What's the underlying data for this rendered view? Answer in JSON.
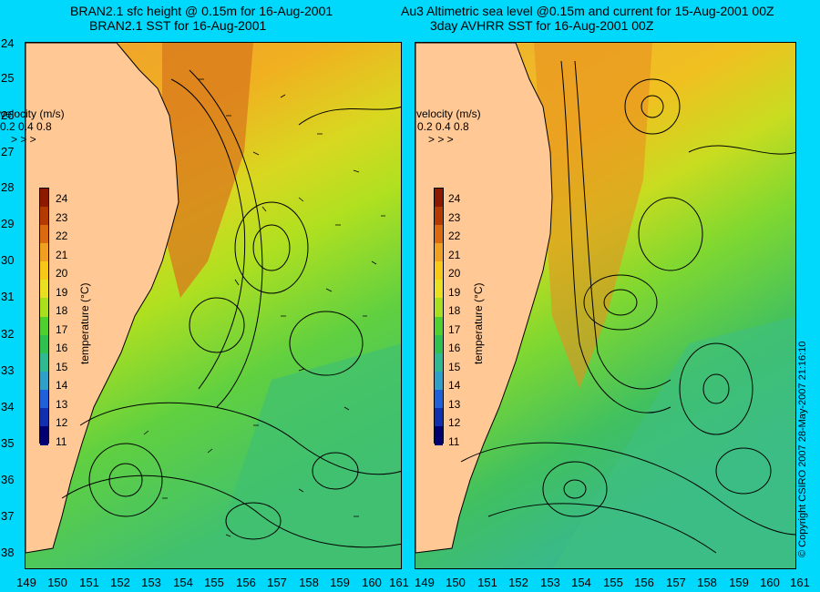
{
  "titles": {
    "left_line1": "BRAN2.1 sfc height @ 0.15m for 16-Aug-2001",
    "left_line2": "BRAN2.1 SST for 16-Aug-2001",
    "right_line1": "Au3 Altimetric sea level  @0.15m and current for 15-Aug-2001 00Z",
    "right_line2": "3day AVHRR SST for 16-Aug-2001 00Z"
  },
  "lat_labels": [
    "24",
    "25",
    "26",
    "27",
    "28",
    "29",
    "30",
    "31",
    "32",
    "33",
    "34",
    "35",
    "36",
    "37",
    "38"
  ],
  "lon_labels": [
    "149",
    "150",
    "151",
    "152",
    "153",
    "154",
    "155",
    "156",
    "157",
    "158",
    "159",
    "160",
    "161"
  ],
  "colorbar": {
    "ticks": [
      "24",
      "23",
      "22",
      "21",
      "20",
      "19",
      "18",
      "17",
      "16",
      "15",
      "14",
      "13",
      "12",
      "11"
    ],
    "title": "temperature (°C)",
    "colors": [
      "#8b1a00",
      "#b33a00",
      "#d96a10",
      "#f0a020",
      "#f8c818",
      "#e8e020",
      "#a8e020",
      "#50d030",
      "#30c050",
      "#30b890",
      "#30a0c8",
      "#2060d8",
      "#1030b0",
      "#000070"
    ]
  },
  "velocity_legend": {
    "title": "velocity (m/s)",
    "scale": "0.2 0.4 0.8",
    "arrows": "> > >"
  },
  "copyright": "© Copyright CSIRO 2007   28-May-2007 21:16:10",
  "colors": {
    "background": "#00d8fc",
    "land": "#ffc895"
  }
}
